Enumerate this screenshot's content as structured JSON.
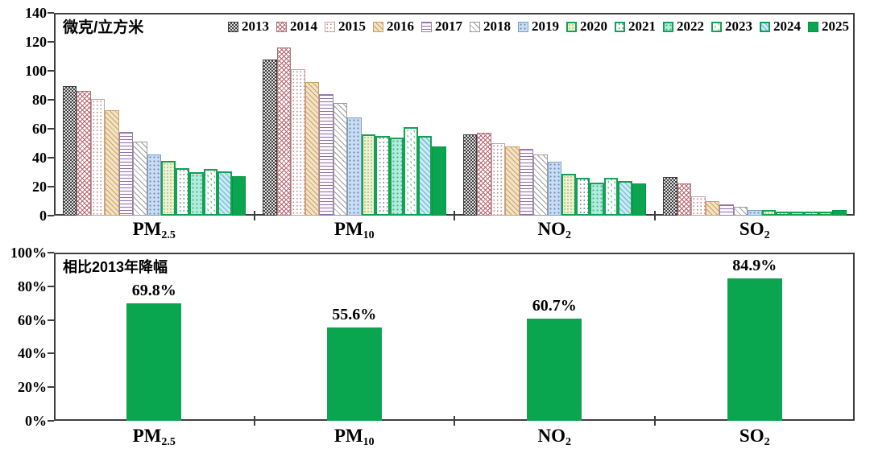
{
  "colors": {
    "bar_green": "#0aa64f",
    "green_border": "#12a251",
    "axis": "#3f3f3f"
  },
  "top_chart": {
    "unit_label": "微克/立方米"
  },
  "bottom_chart": {
    "title": "相比2013年降幅"
  },
  "chart_data": [
    {
      "type": "bar",
      "title": "微克/立方米",
      "ylabel": "微克/立方米",
      "categories": [
        "PM2.5",
        "PM10",
        "NO2",
        "SO2"
      ],
      "categories_display": [
        {
          "main": "PM",
          "sub": "2.5"
        },
        {
          "main": "PM",
          "sub": "10"
        },
        {
          "main": "NO",
          "sub": "2"
        },
        {
          "main": "SO",
          "sub": "2"
        }
      ],
      "series": [
        {
          "name": "2013",
          "values": [
            89.5,
            108,
            56,
            26.5
          ]
        },
        {
          "name": "2014",
          "values": [
            86,
            116,
            57,
            22
          ]
        },
        {
          "name": "2015",
          "values": [
            80.5,
            101,
            50,
            13.5
          ]
        },
        {
          "name": "2016",
          "values": [
            73,
            92,
            48,
            10
          ]
        },
        {
          "name": "2017",
          "values": [
            58,
            84,
            46,
            8
          ]
        },
        {
          "name": "2018",
          "values": [
            51,
            78,
            42,
            6
          ]
        },
        {
          "name": "2019",
          "values": [
            42,
            68,
            37,
            4
          ]
        },
        {
          "name": "2020",
          "values": [
            38,
            56,
            29,
            4
          ]
        },
        {
          "name": "2021",
          "values": [
            33,
            55,
            26,
            3
          ]
        },
        {
          "name": "2022",
          "values": [
            30,
            54,
            23,
            3
          ]
        },
        {
          "name": "2023",
          "values": [
            32,
            61,
            26,
            3
          ]
        },
        {
          "name": "2024",
          "values": [
            30.5,
            55,
            24,
            3
          ]
        },
        {
          "name": "2025",
          "values": [
            27,
            48,
            22,
            4
          ]
        }
      ],
      "ylim": [
        0,
        140
      ],
      "ytick_step": 20,
      "yticks": [
        "0",
        "20",
        "40",
        "60",
        "80",
        "100",
        "120",
        "140"
      ],
      "legend_position": "top-inside",
      "grid": false
    },
    {
      "type": "bar",
      "title": "相比2013年降幅",
      "categories": [
        "PM2.5",
        "PM10",
        "NO2",
        "SO2"
      ],
      "categories_display": [
        {
          "main": "PM",
          "sub": "2.5"
        },
        {
          "main": "PM",
          "sub": "10"
        },
        {
          "main": "NO",
          "sub": "2"
        },
        {
          "main": "SO",
          "sub": "2"
        }
      ],
      "values": [
        69.8,
        55.6,
        60.7,
        84.9
      ],
      "value_labels": [
        "69.8%",
        "55.6%",
        "60.7%",
        "84.9%"
      ],
      "ylim": [
        0,
        100
      ],
      "ytick_step": 20,
      "yticks": [
        "0%",
        "20%",
        "40%",
        "60%",
        "80%",
        "100%"
      ],
      "grid": false
    }
  ]
}
